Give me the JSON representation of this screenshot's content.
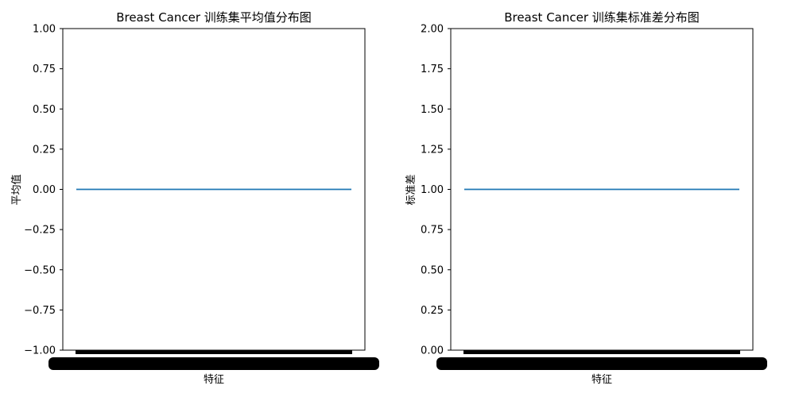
{
  "chart_data": [
    {
      "type": "line",
      "title": "Breast Cancer 训练集平均值分布图",
      "xlabel": "特征",
      "ylabel": "平均值",
      "ylim": [
        -1.0,
        1.0
      ],
      "yticks": [
        "1.00",
        "0.75",
        "0.50",
        "0.25",
        "0.00",
        "−0.25",
        "−0.50",
        "−0.75",
        "−1.00"
      ],
      "x_tick_count": 30,
      "x_tick_labels_legible": false,
      "grid": false,
      "series": [
        {
          "color": "#1f77b4",
          "values": [
            0,
            0,
            0,
            0,
            0,
            0,
            0,
            0,
            0,
            0,
            0,
            0,
            0,
            0,
            0,
            0,
            0,
            0,
            0,
            0,
            0,
            0,
            0,
            0,
            0,
            0,
            0,
            0,
            0,
            0
          ]
        }
      ]
    },
    {
      "type": "line",
      "title": "Breast Cancer 训练集标准差分布图",
      "xlabel": "特征",
      "ylabel": "标准差",
      "ylim": [
        0.0,
        2.0
      ],
      "yticks": [
        "2.00",
        "1.75",
        "1.50",
        "1.25",
        "1.00",
        "0.75",
        "0.50",
        "0.25",
        "0.00"
      ],
      "x_tick_count": 30,
      "x_tick_labels_legible": false,
      "grid": false,
      "series": [
        {
          "color": "#1f77b4",
          "values": [
            1,
            1,
            1,
            1,
            1,
            1,
            1,
            1,
            1,
            1,
            1,
            1,
            1,
            1,
            1,
            1,
            1,
            1,
            1,
            1,
            1,
            1,
            1,
            1,
            1,
            1,
            1,
            1,
            1,
            1
          ]
        }
      ]
    }
  ]
}
